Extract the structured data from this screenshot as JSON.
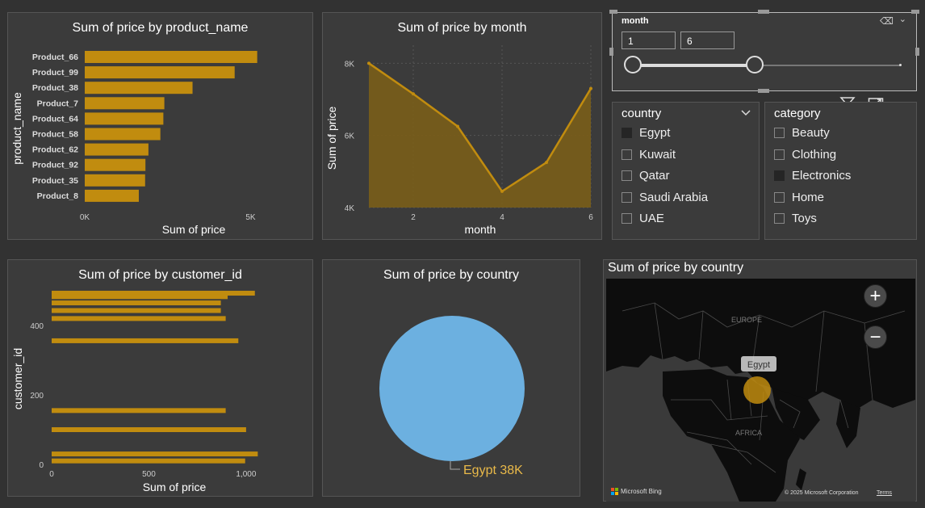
{
  "charts": {
    "product": {
      "title": "Sum of price by product_name",
      "xlabel": "Sum of price",
      "ylabel": "product_name",
      "ticks": [
        "0K",
        "5K"
      ]
    },
    "month": {
      "title": "Sum of price by month",
      "xlabel": "month",
      "ylabel": "Sum of price",
      "yticks": [
        "8K",
        "6K",
        "4K"
      ],
      "xticks": [
        "2",
        "4",
        "6"
      ]
    },
    "customer": {
      "title": "Sum of price by customer_id",
      "xlabel": "Sum of price",
      "ylabel": "customer_id",
      "xticks": [
        "0",
        "500",
        "1,000"
      ],
      "yticks": [
        "400",
        "200",
        "0"
      ]
    },
    "pie": {
      "title": "Sum of price by country",
      "label": "Egypt 38K"
    },
    "map": {
      "title": "Sum of price by country",
      "bubble_label": "Egypt",
      "region_europe": "EUROPE",
      "region_africa": "AFRICA",
      "bing": "Microsoft Bing",
      "copyright": "© 2025 Microsoft Corporation",
      "terms": "Terms",
      "zoom_in": "+",
      "zoom_out": "−"
    }
  },
  "slicers": {
    "month": {
      "title": "month",
      "from": "1",
      "to": "6",
      "min": 1,
      "max": 12,
      "range_from": 1,
      "range_to": 6
    },
    "country": {
      "title": "country",
      "items": [
        {
          "label": "Egypt",
          "checked": true
        },
        {
          "label": "Kuwait",
          "checked": false
        },
        {
          "label": "Qatar",
          "checked": false
        },
        {
          "label": "Saudi Arabia",
          "checked": false
        },
        {
          "label": "UAE",
          "checked": false
        }
      ]
    },
    "category": {
      "title": "category",
      "items": [
        {
          "label": "Beauty",
          "checked": false
        },
        {
          "label": "Clothing",
          "checked": false
        },
        {
          "label": "Electronics",
          "checked": true
        },
        {
          "label": "Home",
          "checked": false
        },
        {
          "label": "Toys",
          "checked": false
        }
      ]
    }
  },
  "colors": {
    "bar": "#c18c0f",
    "area": "#7a5e1a",
    "line": "#c18c0f",
    "pie": "#6cb0e0",
    "panel": "#3b3b3b",
    "label": "#e9b949"
  },
  "chart_data": [
    {
      "type": "bar",
      "title": "Sum of price by product_name",
      "xlabel": "Sum of price",
      "ylabel": "product_name",
      "categories": [
        "Product_66",
        "Product_99",
        "Product_38",
        "Product_7",
        "Product_64",
        "Product_58",
        "Product_62",
        "Product_92",
        "Product_35",
        "Product_8"
      ],
      "values": [
        5200,
        4520,
        3250,
        2400,
        2370,
        2280,
        1920,
        1830,
        1820,
        1630
      ],
      "xlim": [
        0,
        5500
      ]
    },
    {
      "type": "area",
      "title": "Sum of price by month",
      "xlabel": "month",
      "ylabel": "Sum of price",
      "x": [
        1,
        2,
        3,
        4,
        5,
        6
      ],
      "values": [
        8000,
        7150,
        6250,
        4450,
        5250,
        7300
      ],
      "ylim": [
        4000,
        8500
      ]
    },
    {
      "type": "bar",
      "title": "Sum of price by customer_id",
      "xlabel": "Sum of price",
      "ylabel": "customer_id",
      "y": [
        493,
        483,
        465,
        443,
        420,
        356,
        155,
        100,
        30,
        10
      ],
      "values": [
        1045,
        905,
        870,
        870,
        895,
        960,
        895,
        1000,
        1060,
        995
      ],
      "xlim": [
        0,
        1100
      ],
      "ylim": [
        0,
        500
      ]
    },
    {
      "type": "pie",
      "title": "Sum of price by country",
      "categories": [
        "Egypt"
      ],
      "values": [
        38000
      ]
    }
  ]
}
